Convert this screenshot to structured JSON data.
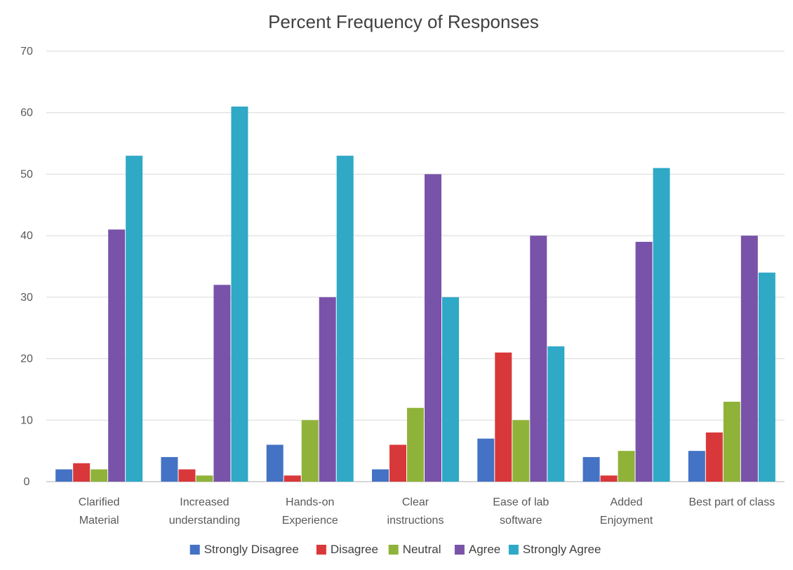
{
  "chart_data": {
    "type": "bar",
    "title": "Percent Frequency of Responses",
    "xlabel": "",
    "ylabel": "",
    "ylim": [
      0,
      70
    ],
    "yticks": [
      0,
      10,
      20,
      30,
      40,
      50,
      60,
      70
    ],
    "grid": true,
    "legend_position": "bottom",
    "categories": [
      [
        "Clarified",
        "Material"
      ],
      [
        "Increased",
        "understanding"
      ],
      [
        "Hands-on",
        "Experience"
      ],
      [
        "Clear",
        "instructions"
      ],
      [
        "Ease of lab",
        "software"
      ],
      [
        "Added",
        "Enjoyment"
      ],
      [
        "Best part of class"
      ]
    ],
    "series": [
      {
        "name": "Strongly Disagree",
        "color": "#4472c4",
        "values": [
          2,
          4,
          6,
          2,
          7,
          4,
          5
        ]
      },
      {
        "name": "Disagree",
        "color": "#d9383a",
        "values": [
          3,
          2,
          1,
          6,
          21,
          1,
          8
        ]
      },
      {
        "name": "Neutral",
        "color": "#8fb339",
        "values": [
          2,
          1,
          10,
          12,
          10,
          5,
          13
        ]
      },
      {
        "name": "Agree",
        "color": "#7953a9",
        "values": [
          41,
          32,
          30,
          50,
          40,
          39,
          40
        ]
      },
      {
        "name": "Strongly Agree",
        "color": "#2fa9c6",
        "values": [
          53,
          61,
          53,
          30,
          22,
          51,
          34
        ]
      }
    ]
  }
}
